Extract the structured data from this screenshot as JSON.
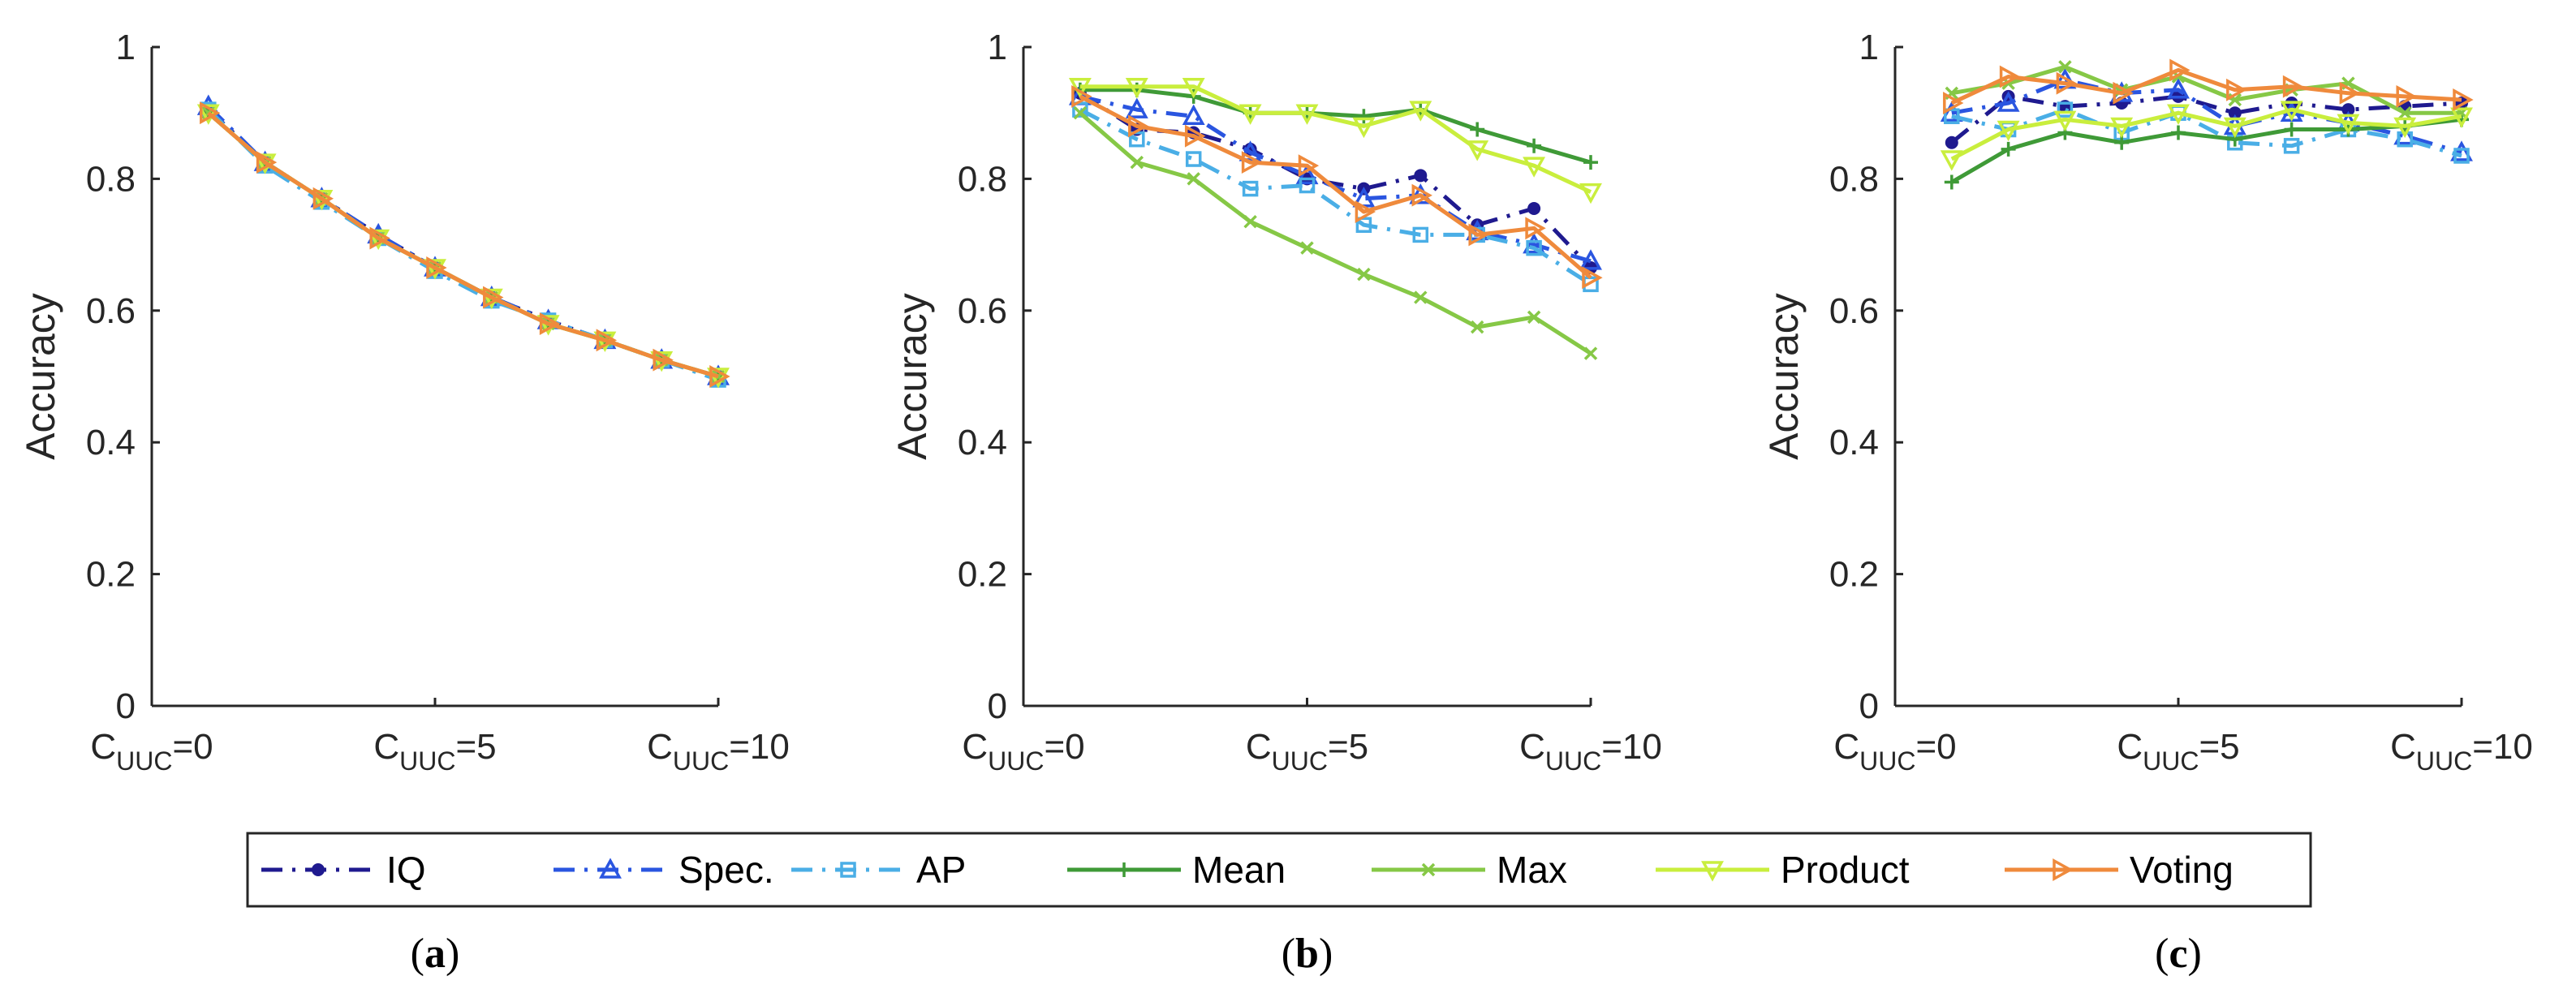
{
  "colors": {
    "IQ": "#1f1a8f",
    "Spec.": "#2a55e0",
    "AP": "#4aaee6",
    "Mean": "#3f9a37",
    "Max": "#86c846",
    "Product": "#c9ee3d",
    "Voting": "#ef8a3c"
  },
  "legend": {
    "entries": [
      {
        "label": "IQ",
        "style": "dashdot",
        "marker": "dot"
      },
      {
        "label": "Spec.",
        "style": "dashdot",
        "marker": "triangle-up"
      },
      {
        "label": "AP",
        "style": "dashdot",
        "marker": "square"
      },
      {
        "label": "Mean",
        "style": "solid",
        "marker": "plus"
      },
      {
        "label": "Max",
        "style": "solid",
        "marker": "x"
      },
      {
        "label": "Product",
        "style": "solid",
        "marker": "triangle-down"
      },
      {
        "label": "Voting",
        "style": "solid",
        "marker": "triangle-right"
      }
    ]
  },
  "chart_data": [
    {
      "type": "line",
      "caption": "(a)",
      "ylabel": "Accuracy",
      "ylim": [
        0,
        1
      ],
      "yticks": [
        "0",
        "0.2",
        "0.4",
        "0.6",
        "0.8",
        "1"
      ],
      "xlim": [
        0,
        10
      ],
      "xticks": [
        {
          "at": 0,
          "main": "C",
          "sub": "UUC",
          "suffix": "=0"
        },
        {
          "at": 5,
          "main": "C",
          "sub": "UUC",
          "suffix": "=5"
        },
        {
          "at": 10,
          "main": "C",
          "sub": "UUC",
          "suffix": "=10"
        }
      ],
      "x": [
        1,
        2,
        3,
        4,
        5,
        6,
        7,
        8,
        9,
        10
      ],
      "series": [
        {
          "name": "IQ",
          "values": [
            0.905,
            0.825,
            0.77,
            0.715,
            0.665,
            0.62,
            0.585,
            0.555,
            0.525,
            0.5
          ]
        },
        {
          "name": "Spec.",
          "values": [
            0.91,
            0.825,
            0.77,
            0.715,
            0.665,
            0.62,
            0.585,
            0.555,
            0.525,
            0.5
          ]
        },
        {
          "name": "AP",
          "values": [
            0.905,
            0.82,
            0.765,
            0.71,
            0.66,
            0.615,
            0.585,
            0.555,
            0.525,
            0.495
          ]
        },
        {
          "name": "Mean",
          "values": [
            0.9,
            0.825,
            0.77,
            0.71,
            0.665,
            0.62,
            0.58,
            0.555,
            0.525,
            0.5
          ]
        },
        {
          "name": "Max",
          "values": [
            0.9,
            0.825,
            0.77,
            0.71,
            0.665,
            0.62,
            0.58,
            0.555,
            0.525,
            0.5
          ]
        },
        {
          "name": "Product",
          "values": [
            0.9,
            0.825,
            0.77,
            0.71,
            0.665,
            0.62,
            0.58,
            0.555,
            0.525,
            0.5
          ]
        },
        {
          "name": "Voting",
          "values": [
            0.9,
            0.825,
            0.77,
            0.71,
            0.665,
            0.62,
            0.58,
            0.555,
            0.525,
            0.5
          ]
        }
      ]
    },
    {
      "type": "line",
      "caption": "(b)",
      "ylabel": "Accuracy",
      "ylim": [
        0,
        1
      ],
      "yticks": [
        "0",
        "0.2",
        "0.4",
        "0.6",
        "0.8",
        "1"
      ],
      "xlim": [
        0,
        10
      ],
      "xticks": [
        {
          "at": 0,
          "main": "C",
          "sub": "UUC",
          "suffix": "=0"
        },
        {
          "at": 5,
          "main": "C",
          "sub": "UUC",
          "suffix": "=5"
        },
        {
          "at": 10,
          "main": "C",
          "sub": "UUC",
          "suffix": "=10"
        }
      ],
      "x": [
        1,
        2,
        3,
        4,
        5,
        6,
        7,
        8,
        9,
        10
      ],
      "series": [
        {
          "name": "IQ",
          "values": [
            0.93,
            0.875,
            0.87,
            0.845,
            0.8,
            0.785,
            0.805,
            0.73,
            0.755,
            0.665
          ]
        },
        {
          "name": "Spec.",
          "values": [
            0.925,
            0.905,
            0.895,
            0.84,
            0.805,
            0.77,
            0.775,
            0.72,
            0.7,
            0.675
          ]
        },
        {
          "name": "AP",
          "values": [
            0.905,
            0.86,
            0.83,
            0.785,
            0.79,
            0.73,
            0.715,
            0.715,
            0.695,
            0.64
          ]
        },
        {
          "name": "Mean",
          "values": [
            0.935,
            0.935,
            0.925,
            0.9,
            0.9,
            0.895,
            0.905,
            0.875,
            0.85,
            0.825
          ]
        },
        {
          "name": "Max",
          "values": [
            0.9,
            0.825,
            0.8,
            0.735,
            0.695,
            0.655,
            0.62,
            0.575,
            0.59,
            0.535
          ]
        },
        {
          "name": "Product",
          "values": [
            0.94,
            0.94,
            0.94,
            0.9,
            0.9,
            0.88,
            0.905,
            0.845,
            0.82,
            0.78
          ]
        },
        {
          "name": "Voting",
          "values": [
            0.925,
            0.88,
            0.865,
            0.825,
            0.82,
            0.75,
            0.775,
            0.715,
            0.725,
            0.65
          ]
        }
      ]
    },
    {
      "type": "line",
      "caption": "(c)",
      "ylabel": "Accuracy",
      "ylim": [
        0,
        1
      ],
      "yticks": [
        "0",
        "0.2",
        "0.4",
        "0.6",
        "0.8",
        "1"
      ],
      "xlim": [
        0,
        10
      ],
      "xticks": [
        {
          "at": 0,
          "main": "C",
          "sub": "UUC",
          "suffix": "=0"
        },
        {
          "at": 5,
          "main": "C",
          "sub": "UUC",
          "suffix": "=5"
        },
        {
          "at": 10,
          "main": "C",
          "sub": "UUC",
          "suffix": "=10"
        }
      ],
      "x": [
        1,
        2,
        3,
        4,
        5,
        6,
        7,
        8,
        9,
        10
      ],
      "series": [
        {
          "name": "IQ",
          "values": [
            0.855,
            0.925,
            0.91,
            0.915,
            0.925,
            0.9,
            0.915,
            0.905,
            0.91,
            0.915
          ]
        },
        {
          "name": "Spec.",
          "values": [
            0.9,
            0.915,
            0.95,
            0.93,
            0.935,
            0.88,
            0.9,
            0.885,
            0.865,
            0.84
          ]
        },
        {
          "name": "AP",
          "values": [
            0.895,
            0.875,
            0.905,
            0.87,
            0.9,
            0.855,
            0.85,
            0.875,
            0.86,
            0.835
          ]
        },
        {
          "name": "Mean",
          "values": [
            0.795,
            0.845,
            0.87,
            0.855,
            0.87,
            0.86,
            0.875,
            0.875,
            0.88,
            0.89
          ]
        },
        {
          "name": "Max",
          "values": [
            0.93,
            0.945,
            0.97,
            0.935,
            0.955,
            0.92,
            0.935,
            0.945,
            0.9,
            0.9
          ]
        },
        {
          "name": "Product",
          "values": [
            0.83,
            0.875,
            0.89,
            0.88,
            0.9,
            0.88,
            0.905,
            0.885,
            0.88,
            0.895
          ]
        },
        {
          "name": "Voting",
          "values": [
            0.915,
            0.955,
            0.945,
            0.93,
            0.965,
            0.935,
            0.94,
            0.93,
            0.925,
            0.92
          ]
        }
      ]
    }
  ]
}
